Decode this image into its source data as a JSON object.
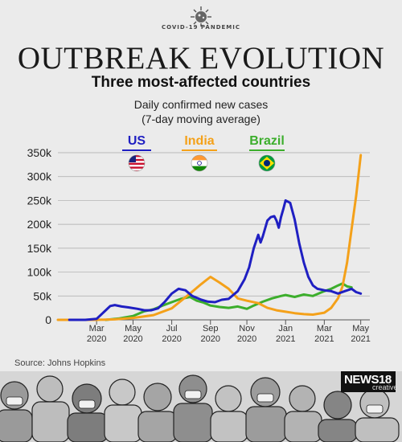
{
  "badge": {
    "text": "COVID-19 PANDEMIC",
    "icon": "virus-icon"
  },
  "header": {
    "title": "OUTBREAK EVOLUTION",
    "subtitle": "Three most-affected countries",
    "note_line1": "Daily confirmed new cases",
    "note_line2": "(7-day moving average)"
  },
  "legend": [
    {
      "name": "US",
      "color": "#1f1fc2",
      "flag": "us-flag-icon"
    },
    {
      "name": "India",
      "color": "#f4a11a",
      "flag": "india-flag-icon"
    },
    {
      "name": "Brazil",
      "color": "#3cae2c",
      "flag": "brazil-flag-icon"
    }
  ],
  "source": "Source: Johns Hopkins",
  "logo": {
    "main": "NEWS18",
    "sub": "creative"
  },
  "chart_data": {
    "type": "line",
    "title": "Daily confirmed new cases",
    "subtitle": "(7-day moving average)",
    "ylim": [
      0,
      350000
    ],
    "x_range": [
      2020.0,
      2021.37
    ],
    "y_ticks": [
      {
        "v": 0,
        "label": "0"
      },
      {
        "v": 50000,
        "label": "50k"
      },
      {
        "v": 100000,
        "label": "100k"
      },
      {
        "v": 150000,
        "label": "150k"
      },
      {
        "v": 200000,
        "label": "200k"
      },
      {
        "v": 250000,
        "label": "250k"
      },
      {
        "v": 300000,
        "label": "300k"
      },
      {
        "v": 350000,
        "label": "350k"
      }
    ],
    "x_ticks": [
      {
        "v": 2020.17,
        "label": "Mar",
        "label2": "2020"
      },
      {
        "v": 2020.33,
        "label": "May",
        "label2": "2020"
      },
      {
        "v": 2020.5,
        "label": "Jul",
        "label2": "2020"
      },
      {
        "v": 2020.67,
        "label": "Sep",
        "label2": "2020"
      },
      {
        "v": 2020.83,
        "label": "Nov",
        "label2": "2020"
      },
      {
        "v": 2021.0,
        "label": "Jan",
        "label2": "2021"
      },
      {
        "v": 2021.17,
        "label": "Mar",
        "label2": "2021"
      },
      {
        "v": 2021.33,
        "label": "May",
        "label2": "2021"
      }
    ],
    "grid": true,
    "series": [
      {
        "name": "US",
        "color": "#1f1fc2",
        "points": [
          [
            2020.05,
            0
          ],
          [
            2020.12,
            0
          ],
          [
            2020.17,
            2000
          ],
          [
            2020.21,
            20000
          ],
          [
            2020.23,
            29000
          ],
          [
            2020.25,
            31000
          ],
          [
            2020.28,
            28000
          ],
          [
            2020.31,
            26000
          ],
          [
            2020.35,
            23000
          ],
          [
            2020.38,
            20000
          ],
          [
            2020.41,
            20000
          ],
          [
            2020.44,
            24000
          ],
          [
            2020.47,
            38000
          ],
          [
            2020.5,
            55000
          ],
          [
            2020.53,
            65000
          ],
          [
            2020.56,
            62000
          ],
          [
            2020.59,
            50000
          ],
          [
            2020.63,
            42000
          ],
          [
            2020.66,
            38000
          ],
          [
            2020.69,
            37000
          ],
          [
            2020.72,
            42000
          ],
          [
            2020.75,
            44000
          ],
          [
            2020.79,
            60000
          ],
          [
            2020.82,
            85000
          ],
          [
            2020.84,
            110000
          ],
          [
            2020.86,
            150000
          ],
          [
            2020.88,
            178000
          ],
          [
            2020.89,
            162000
          ],
          [
            2020.9,
            175000
          ],
          [
            2020.92,
            208000
          ],
          [
            2020.935,
            215000
          ],
          [
            2020.95,
            217000
          ],
          [
            2020.96,
            208000
          ],
          [
            2020.97,
            193000
          ],
          [
            2020.98,
            215000
          ],
          [
            2020.99,
            232000
          ],
          [
            2021.0,
            250000
          ],
          [
            2021.02,
            245000
          ],
          [
            2021.04,
            210000
          ],
          [
            2021.06,
            160000
          ],
          [
            2021.08,
            120000
          ],
          [
            2021.1,
            90000
          ],
          [
            2021.12,
            72000
          ],
          [
            2021.14,
            65000
          ],
          [
            2021.17,
            62000
          ],
          [
            2021.2,
            60000
          ],
          [
            2021.23,
            55000
          ],
          [
            2021.26,
            60000
          ],
          [
            2021.29,
            65000
          ],
          [
            2021.31,
            58000
          ],
          [
            2021.33,
            55000
          ]
        ]
      },
      {
        "name": "India",
        "color": "#f4a11a",
        "points": [
          [
            2020.0,
            0
          ],
          [
            2020.17,
            0
          ],
          [
            2020.25,
            1000
          ],
          [
            2020.33,
            4000
          ],
          [
            2020.42,
            10000
          ],
          [
            2020.5,
            24000
          ],
          [
            2020.58,
            55000
          ],
          [
            2020.63,
            75000
          ],
          [
            2020.67,
            90000
          ],
          [
            2020.71,
            78000
          ],
          [
            2020.75,
            65000
          ],
          [
            2020.79,
            45000
          ],
          [
            2020.83,
            40000
          ],
          [
            2020.88,
            35000
          ],
          [
            2020.92,
            25000
          ],
          [
            2020.96,
            20000
          ],
          [
            2021.0,
            17000
          ],
          [
            2021.04,
            14000
          ],
          [
            2021.08,
            12000
          ],
          [
            2021.12,
            11000
          ],
          [
            2021.17,
            15000
          ],
          [
            2021.2,
            25000
          ],
          [
            2021.23,
            45000
          ],
          [
            2021.25,
            70000
          ],
          [
            2021.27,
            120000
          ],
          [
            2021.29,
            190000
          ],
          [
            2021.31,
            260000
          ],
          [
            2021.33,
            345000
          ]
        ]
      },
      {
        "name": "Brazil",
        "color": "#3cae2c",
        "points": [
          [
            2020.21,
            0
          ],
          [
            2020.27,
            3000
          ],
          [
            2020.33,
            8000
          ],
          [
            2020.38,
            18000
          ],
          [
            2020.42,
            22000
          ],
          [
            2020.46,
            30000
          ],
          [
            2020.5,
            37000
          ],
          [
            2020.54,
            44000
          ],
          [
            2020.58,
            48000
          ],
          [
            2020.61,
            40000
          ],
          [
            2020.64,
            36000
          ],
          [
            2020.67,
            30000
          ],
          [
            2020.71,
            27000
          ],
          [
            2020.75,
            25000
          ],
          [
            2020.79,
            28000
          ],
          [
            2020.83,
            23000
          ],
          [
            2020.86,
            30000
          ],
          [
            2020.9,
            38000
          ],
          [
            2020.94,
            45000
          ],
          [
            2020.98,
            50000
          ],
          [
            2021.0,
            52000
          ],
          [
            2021.04,
            48000
          ],
          [
            2021.08,
            53000
          ],
          [
            2021.12,
            50000
          ],
          [
            2021.17,
            60000
          ],
          [
            2021.2,
            65000
          ],
          [
            2021.23,
            72000
          ],
          [
            2021.25,
            76000
          ],
          [
            2021.27,
            70000
          ],
          [
            2021.29,
            68000
          ]
        ]
      }
    ]
  }
}
